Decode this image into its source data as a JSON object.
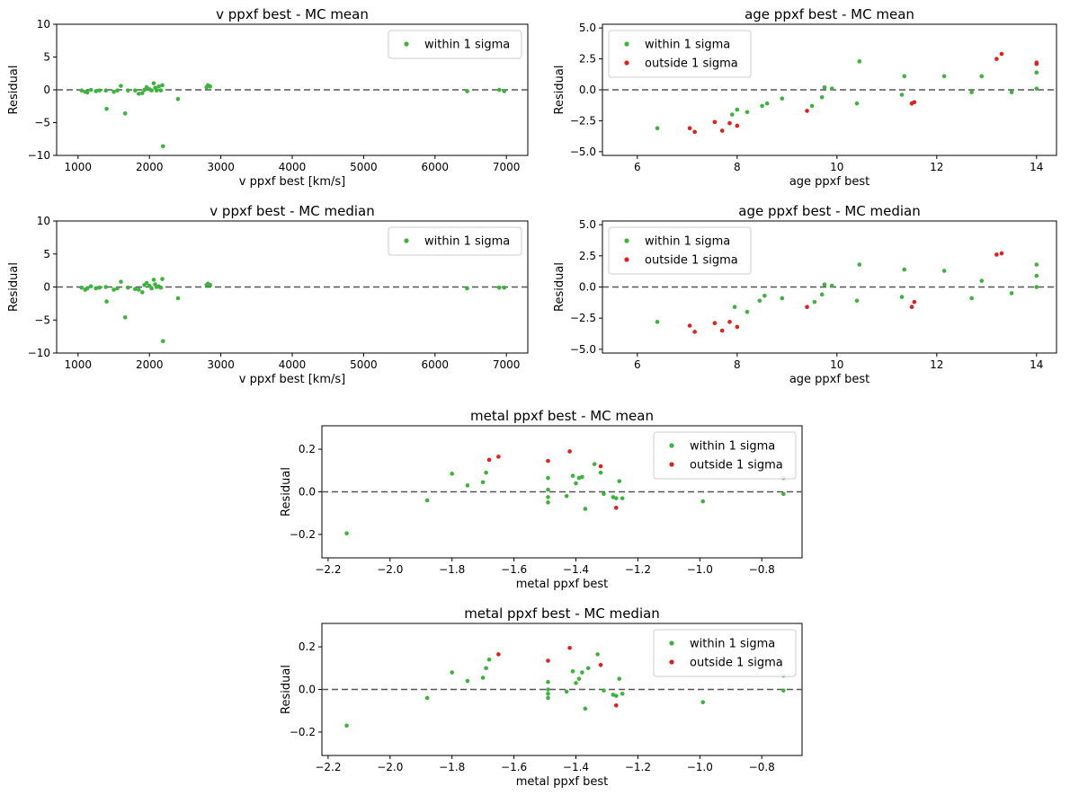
{
  "chart_data": [
    {
      "type": "scatter",
      "title": "v ppxf best - MC mean",
      "xlabel": "v ppxf best [km/s]",
      "ylabel": "Residual",
      "xlim": [
        700,
        7300
      ],
      "ylim": [
        -10,
        10
      ],
      "xticks": [
        1000,
        2000,
        3000,
        4000,
        5000,
        6000,
        7000
      ],
      "yticks": [
        -10,
        -5,
        0,
        5,
        10
      ],
      "grid": false,
      "reference_line": 0,
      "legend": "upper right",
      "series": [
        {
          "name": "within 1 sigma",
          "color": "#3cb33c",
          "points": [
            [
              1050,
              -0.1
            ],
            [
              1100,
              -0.3
            ],
            [
              1130,
              -0.4
            ],
            [
              1180,
              0.0
            ],
            [
              1250,
              -0.2
            ],
            [
              1300,
              -0.1
            ],
            [
              1390,
              -0.1
            ],
            [
              1400,
              -2.9
            ],
            [
              1500,
              -0.3
            ],
            [
              1550,
              -0.1
            ],
            [
              1600,
              0.6
            ],
            [
              1660,
              -3.6
            ],
            [
              1700,
              -0.1
            ],
            [
              1800,
              -0.1
            ],
            [
              1850,
              -0.6
            ],
            [
              1900,
              -0.5
            ],
            [
              1930,
              0.0
            ],
            [
              1960,
              0.4
            ],
            [
              2000,
              0.1
            ],
            [
              2030,
              -0.1
            ],
            [
              2060,
              1.0
            ],
            [
              2080,
              0.3
            ],
            [
              2100,
              -0.1
            ],
            [
              2130,
              0.5
            ],
            [
              2160,
              -0.1
            ],
            [
              2180,
              0.7
            ],
            [
              2190,
              -8.6
            ],
            [
              2400,
              -1.4
            ],
            [
              2800,
              0.4
            ],
            [
              2820,
              0.7
            ],
            [
              2850,
              0.5
            ],
            [
              6450,
              -0.2
            ],
            [
              6900,
              0.0
            ],
            [
              6970,
              -0.2
            ]
          ]
        }
      ]
    },
    {
      "type": "scatter",
      "title": "age ppxf best - MC mean",
      "xlabel": "age ppxf best",
      "ylabel": "Residual",
      "xlim": [
        5.3,
        14.4
      ],
      "ylim": [
        -5.3,
        5.3
      ],
      "xticks": [
        6,
        8,
        10,
        12,
        14
      ],
      "yticks": [
        -5.0,
        -2.5,
        0.0,
        2.5,
        5.0
      ],
      "grid": false,
      "reference_line": 0,
      "legend": "upper left",
      "series": [
        {
          "name": "within 1 sigma",
          "color": "#3cb33c",
          "points": [
            [
              6.4,
              -3.1
            ],
            [
              7.9,
              -2.0
            ],
            [
              8.0,
              -1.6
            ],
            [
              8.2,
              -1.8
            ],
            [
              8.5,
              -1.3
            ],
            [
              8.6,
              -1.1
            ],
            [
              8.9,
              -0.7
            ],
            [
              9.5,
              -1.3
            ],
            [
              9.7,
              -0.6
            ],
            [
              9.75,
              0.2
            ],
            [
              9.9,
              0.1
            ],
            [
              10.4,
              -1.1
            ],
            [
              10.45,
              2.3
            ],
            [
              11.3,
              -0.4
            ],
            [
              11.35,
              1.1
            ],
            [
              11.5,
              -1.1
            ],
            [
              12.15,
              1.1
            ],
            [
              12.7,
              -0.2
            ],
            [
              12.9,
              1.1
            ],
            [
              13.5,
              -0.2
            ],
            [
              14.0,
              1.4
            ],
            [
              14.0,
              0.1
            ]
          ]
        },
        {
          "name": "outside 1 sigma",
          "color": "#e0201f",
          "points": [
            [
              7.05,
              -3.1
            ],
            [
              7.15,
              -3.4
            ],
            [
              7.55,
              -2.6
            ],
            [
              7.7,
              -3.3
            ],
            [
              7.85,
              -2.7
            ],
            [
              8.0,
              -2.9
            ],
            [
              9.4,
              -1.7
            ],
            [
              11.5,
              -1.1
            ],
            [
              11.55,
              -1.0
            ],
            [
              13.2,
              2.5
            ],
            [
              13.3,
              2.9
            ],
            [
              14.0,
              2.1
            ],
            [
              14.0,
              2.2
            ]
          ]
        }
      ]
    },
    {
      "type": "scatter",
      "title": "v ppxf best - MC median",
      "xlabel": "v ppxf best [km/s]",
      "ylabel": "Residual",
      "xlim": [
        700,
        7300
      ],
      "ylim": [
        -10,
        10
      ],
      "xticks": [
        1000,
        2000,
        3000,
        4000,
        5000,
        6000,
        7000
      ],
      "yticks": [
        -10,
        -5,
        0,
        5,
        10
      ],
      "grid": false,
      "reference_line": 0,
      "legend": "upper right",
      "series": [
        {
          "name": "within 1 sigma",
          "color": "#3cb33c",
          "points": [
            [
              1050,
              -0.1
            ],
            [
              1100,
              -0.4
            ],
            [
              1130,
              -0.2
            ],
            [
              1180,
              0.1
            ],
            [
              1250,
              -0.2
            ],
            [
              1300,
              -0.1
            ],
            [
              1390,
              0.0
            ],
            [
              1400,
              -2.2
            ],
            [
              1500,
              -0.4
            ],
            [
              1550,
              -0.2
            ],
            [
              1600,
              0.8
            ],
            [
              1660,
              -4.6
            ],
            [
              1700,
              -0.1
            ],
            [
              1800,
              -0.3
            ],
            [
              1850,
              -0.4
            ],
            [
              1900,
              -0.8
            ],
            [
              1930,
              0.3
            ],
            [
              1960,
              0.6
            ],
            [
              2000,
              0.2
            ],
            [
              2030,
              -0.2
            ],
            [
              2060,
              1.1
            ],
            [
              2080,
              0.4
            ],
            [
              2100,
              0.0
            ],
            [
              2130,
              0.1
            ],
            [
              2160,
              -0.1
            ],
            [
              2180,
              1.2
            ],
            [
              2190,
              -8.2
            ],
            [
              2400,
              -1.7
            ],
            [
              2800,
              0.3
            ],
            [
              2820,
              0.5
            ],
            [
              2850,
              0.3
            ],
            [
              6450,
              -0.2
            ],
            [
              6900,
              -0.1
            ],
            [
              6970,
              -0.1
            ]
          ]
        }
      ]
    },
    {
      "type": "scatter",
      "title": "age ppxf best - MC median",
      "xlabel": "age ppxf best",
      "ylabel": "Residual",
      "xlim": [
        5.3,
        14.4
      ],
      "ylim": [
        -5.3,
        5.3
      ],
      "xticks": [
        6,
        8,
        10,
        12,
        14
      ],
      "yticks": [
        -5.0,
        -2.5,
        0.0,
        2.5,
        5.0
      ],
      "grid": false,
      "reference_line": 0,
      "legend": "upper left",
      "series": [
        {
          "name": "within 1 sigma",
          "color": "#3cb33c",
          "points": [
            [
              6.4,
              -2.8
            ],
            [
              7.95,
              -1.6
            ],
            [
              8.2,
              -2.0
            ],
            [
              8.45,
              -1.1
            ],
            [
              8.55,
              -0.7
            ],
            [
              8.9,
              -0.9
            ],
            [
              9.55,
              -1.2
            ],
            [
              9.7,
              -0.6
            ],
            [
              9.75,
              0.2
            ],
            [
              9.9,
              0.1
            ],
            [
              10.4,
              -1.1
            ],
            [
              10.45,
              1.8
            ],
            [
              11.3,
              -0.8
            ],
            [
              11.35,
              1.4
            ],
            [
              12.15,
              1.3
            ],
            [
              12.7,
              -0.9
            ],
            [
              12.9,
              0.5
            ],
            [
              13.5,
              -0.5
            ],
            [
              14.0,
              1.8
            ],
            [
              14.0,
              0.9
            ],
            [
              14.0,
              0.0
            ]
          ]
        },
        {
          "name": "outside 1 sigma",
          "color": "#e0201f",
          "points": [
            [
              7.05,
              -3.1
            ],
            [
              7.15,
              -3.6
            ],
            [
              7.55,
              -2.9
            ],
            [
              7.7,
              -3.5
            ],
            [
              7.85,
              -2.8
            ],
            [
              8.0,
              -3.2
            ],
            [
              9.4,
              -1.6
            ],
            [
              11.5,
              -1.6
            ],
            [
              11.55,
              -1.2
            ],
            [
              13.2,
              2.6
            ],
            [
              13.3,
              2.7
            ]
          ]
        }
      ]
    },
    {
      "type": "scatter",
      "title": "metal ppxf best - MC mean",
      "xlabel": "metal ppxf best",
      "ylabel": "Residual",
      "xlim": [
        -2.22,
        -0.67
      ],
      "ylim": [
        -0.31,
        0.31
      ],
      "xticks": [
        -2.2,
        -2.0,
        -1.8,
        -1.6,
        -1.4,
        -1.2,
        -1.0,
        -0.8
      ],
      "yticks": [
        -0.2,
        0.0,
        0.2
      ],
      "grid": false,
      "reference_line": 0,
      "legend": "upper right",
      "series": [
        {
          "name": "within 1 sigma",
          "color": "#3cb33c",
          "points": [
            [
              -2.14,
              -0.195
            ],
            [
              -1.88,
              -0.04
            ],
            [
              -1.8,
              0.085
            ],
            [
              -1.75,
              0.03
            ],
            [
              -1.7,
              0.045
            ],
            [
              -1.69,
              0.09
            ],
            [
              -1.49,
              0.065
            ],
            [
              -1.49,
              0.01
            ],
            [
              -1.49,
              -0.025
            ],
            [
              -1.49,
              -0.05
            ],
            [
              -1.43,
              -0.02
            ],
            [
              -1.41,
              0.075
            ],
            [
              -1.4,
              0.04
            ],
            [
              -1.39,
              0.065
            ],
            [
              -1.38,
              0.07
            ],
            [
              -1.37,
              -0.08
            ],
            [
              -1.34,
              0.13
            ],
            [
              -1.32,
              0.09
            ],
            [
              -1.31,
              -0.01
            ],
            [
              -1.28,
              -0.025
            ],
            [
              -1.27,
              -0.03
            ],
            [
              -1.26,
              0.05
            ],
            [
              -1.25,
              -0.03
            ],
            [
              -0.99,
              -0.045
            ],
            [
              -0.73,
              0.065
            ],
            [
              -0.73,
              -0.01
            ]
          ]
        },
        {
          "name": "outside 1 sigma",
          "color": "#e0201f",
          "points": [
            [
              -1.68,
              0.15
            ],
            [
              -1.65,
              0.165
            ],
            [
              -1.49,
              0.145
            ],
            [
              -1.42,
              0.19
            ],
            [
              -1.32,
              0.12
            ],
            [
              -1.27,
              -0.075
            ]
          ]
        }
      ]
    },
    {
      "type": "scatter",
      "title": "metal ppxf best - MC median",
      "xlabel": "metal ppxf best",
      "ylabel": "Residual",
      "xlim": [
        -2.22,
        -0.67
      ],
      "ylim": [
        -0.31,
        0.31
      ],
      "xticks": [
        -2.2,
        -2.0,
        -1.8,
        -1.6,
        -1.4,
        -1.2,
        -1.0,
        -0.8
      ],
      "yticks": [
        -0.2,
        0.0,
        0.2
      ],
      "grid": false,
      "reference_line": 0,
      "legend": "upper right",
      "series": [
        {
          "name": "within 1 sigma",
          "color": "#3cb33c",
          "points": [
            [
              -2.14,
              -0.17
            ],
            [
              -1.88,
              -0.04
            ],
            [
              -1.8,
              0.08
            ],
            [
              -1.75,
              0.04
            ],
            [
              -1.7,
              0.055
            ],
            [
              -1.69,
              0.1
            ],
            [
              -1.68,
              0.14
            ],
            [
              -1.49,
              0.035
            ],
            [
              -1.49,
              0.0
            ],
            [
              -1.49,
              -0.02
            ],
            [
              -1.49,
              -0.04
            ],
            [
              -1.43,
              -0.01
            ],
            [
              -1.41,
              0.085
            ],
            [
              -1.4,
              0.03
            ],
            [
              -1.39,
              0.05
            ],
            [
              -1.38,
              0.08
            ],
            [
              -1.37,
              -0.09
            ],
            [
              -1.36,
              0.1
            ],
            [
              -1.33,
              0.165
            ],
            [
              -1.31,
              -0.005
            ],
            [
              -1.28,
              -0.025
            ],
            [
              -1.27,
              -0.03
            ],
            [
              -1.26,
              0.05
            ],
            [
              -1.25,
              -0.02
            ],
            [
              -0.99,
              -0.06
            ],
            [
              -0.73,
              0.065
            ],
            [
              -0.73,
              -0.005
            ]
          ]
        },
        {
          "name": "outside 1 sigma",
          "color": "#e0201f",
          "points": [
            [
              -1.65,
              0.165
            ],
            [
              -1.49,
              0.135
            ],
            [
              -1.42,
              0.195
            ],
            [
              -1.32,
              0.115
            ],
            [
              -1.27,
              -0.075
            ]
          ]
        }
      ]
    }
  ]
}
